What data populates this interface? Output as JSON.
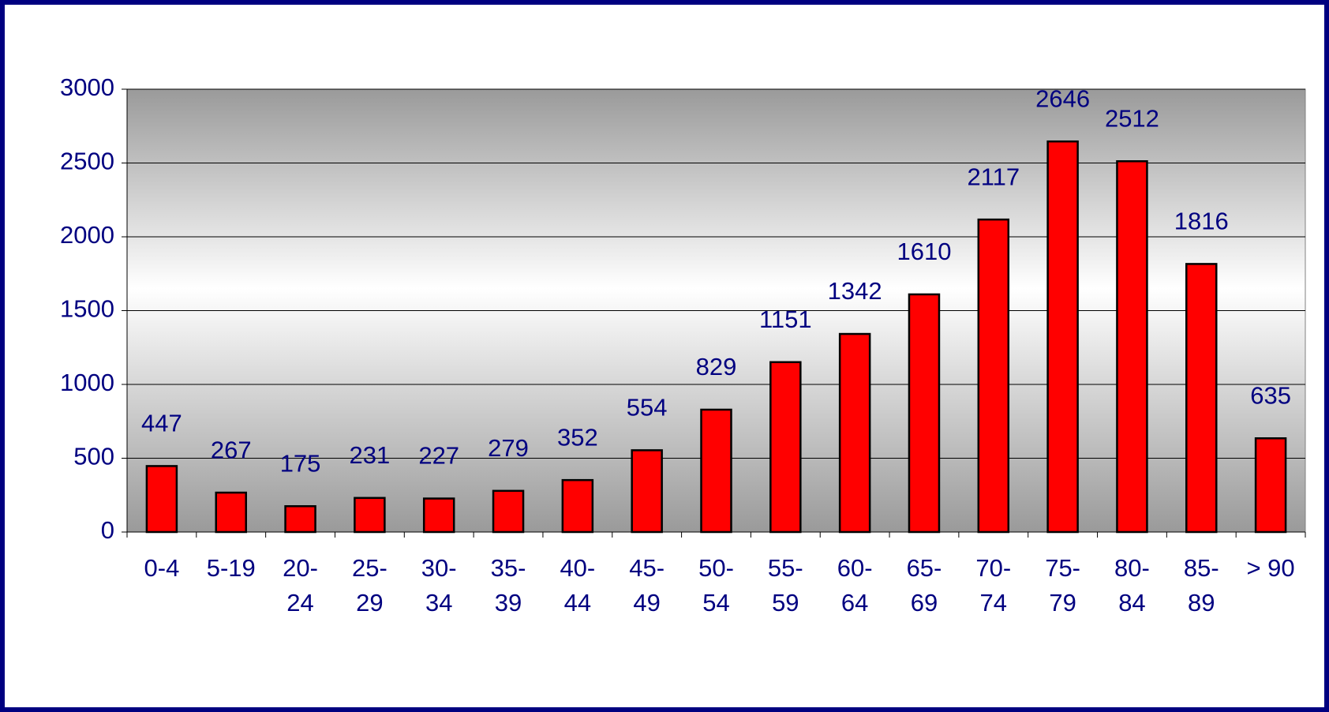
{
  "chart_data": {
    "type": "bar",
    "categories": [
      "0-4",
      "5-19",
      "20-24",
      "25-29",
      "30-34",
      "35-39",
      "40-44",
      "45-49",
      "50-54",
      "55-59",
      "60-64",
      "65-69",
      "70-74",
      "75-79",
      "80-84",
      "85-89",
      "> 90"
    ],
    "values": [
      447,
      267,
      175,
      231,
      227,
      279,
      352,
      554,
      829,
      1151,
      1342,
      1610,
      2117,
      2646,
      2512,
      1816,
      635
    ],
    "color": "#ff0000",
    "ylim": [
      0,
      3000
    ],
    "yticks": [
      0,
      500,
      1000,
      1500,
      2000,
      2500,
      3000
    ],
    "grid": true
  }
}
